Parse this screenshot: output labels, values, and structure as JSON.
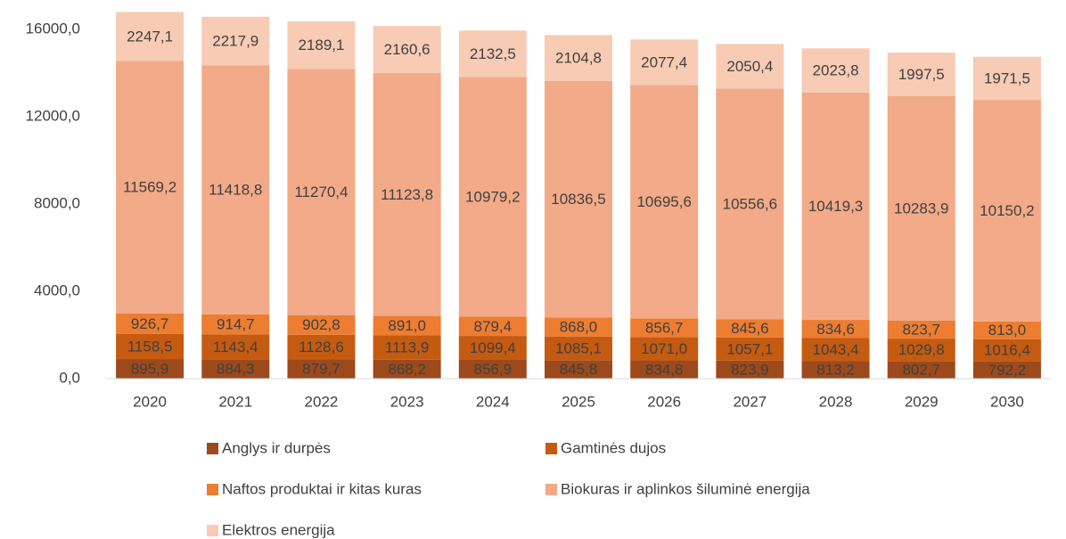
{
  "chart_data": {
    "type": "stacked_bar",
    "categories": [
      "2020",
      "2021",
      "2022",
      "2023",
      "2024",
      "2025",
      "2026",
      "2027",
      "2028",
      "2029",
      "2030"
    ],
    "series": [
      {
        "name": "Anglys ir durpės",
        "color": "#9c4a1c",
        "values": [
          895.9,
          884.3,
          879.7,
          868.2,
          856.9,
          845.8,
          834.8,
          823.9,
          813.2,
          802.7,
          792.2
        ],
        "value_labels": [
          "895,9",
          "884,3",
          "879,7",
          "868,2",
          "856,9",
          "845,8",
          "834,8",
          "823,9",
          "813,2",
          "802,7",
          "792,2"
        ]
      },
      {
        "name": "Gamtinės dujos",
        "color": "#c55a11",
        "values": [
          1158.5,
          1143.4,
          1128.6,
          1113.9,
          1099.4,
          1085.1,
          1071.0,
          1057.1,
          1043.4,
          1029.8,
          1016.4
        ],
        "value_labels": [
          "1158,5",
          "1143,4",
          "1128,6",
          "1113,9",
          "1099,4",
          "1085,1",
          "1071,0",
          "1057,1",
          "1043,4",
          "1029,8",
          "1016,4"
        ]
      },
      {
        "name": "Naftos produktai ir kitas kuras",
        "color": "#ed7d31",
        "values": [
          926.7,
          914.7,
          902.8,
          891.0,
          879.4,
          868.0,
          856.7,
          845.6,
          834.6,
          823.7,
          813.0
        ],
        "value_labels": [
          "926,7",
          "914,7",
          "902,8",
          "891,0",
          "879,4",
          "868,0",
          "856,7",
          "845,6",
          "834,6",
          "823,7",
          "813,0"
        ]
      },
      {
        "name": "Biokuras ir aplinkos šiluminė energija",
        "color": "#f2aa88",
        "values": [
          11569.2,
          11418.8,
          11270.4,
          11123.8,
          10979.2,
          10836.5,
          10695.6,
          10556.6,
          10419.3,
          10283.9,
          10150.2
        ],
        "value_labels": [
          "11569,2",
          "11418,8",
          "11270,4",
          "11123,8",
          "10979,2",
          "10836,5",
          "10695,6",
          "10556,6",
          "10419,3",
          "10283,9",
          "10150,2"
        ]
      },
      {
        "name": "Elektros energija",
        "color": "#f8cbb4",
        "values": [
          2247.1,
          2217.9,
          2189.1,
          2160.6,
          2132.5,
          2104.8,
          2077.4,
          2050.4,
          2023.8,
          1997.5,
          1971.5
        ],
        "value_labels": [
          "2247,1",
          "2217,9",
          "2189,1",
          "2160,6",
          "2132,5",
          "2104,8",
          "2077,4",
          "2050,4",
          "2023,8",
          "1997,5",
          "1971,5"
        ]
      }
    ],
    "ylim": [
      0,
      16000
    ],
    "yticks": [
      {
        "value": 0,
        "label": "0,0"
      },
      {
        "value": 4000,
        "label": "4000,0"
      },
      {
        "value": 8000,
        "label": "8000,0"
      },
      {
        "value": 12000,
        "label": "12000,0"
      },
      {
        "value": 16000,
        "label": "16000,0"
      }
    ],
    "grid": false
  }
}
